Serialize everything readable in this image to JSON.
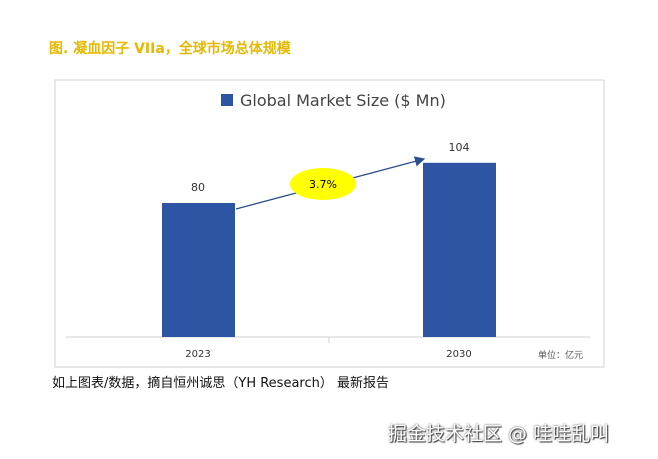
{
  "title": "图. 凝血因子 VIIa，全球市场总体规模",
  "source": "如上图表/数据，摘自恒州诚思（YH Research） 最新报告",
  "watermark": "掘金技术社区 @ 哇哇乱叫",
  "chart_data": {
    "type": "bar",
    "categories": [
      "2023",
      "2030"
    ],
    "series": [
      {
        "name": "Global Market Size ($ Mn)",
        "values": [
          80,
          104
        ]
      }
    ],
    "ylim": [
      0,
      120
    ],
    "grid": false,
    "legend": "top",
    "annotation": "3.7%",
    "unit_note": "单位：亿元",
    "colors": {
      "bar": "#2e55a3",
      "ellipse": "#ffff00"
    }
  }
}
